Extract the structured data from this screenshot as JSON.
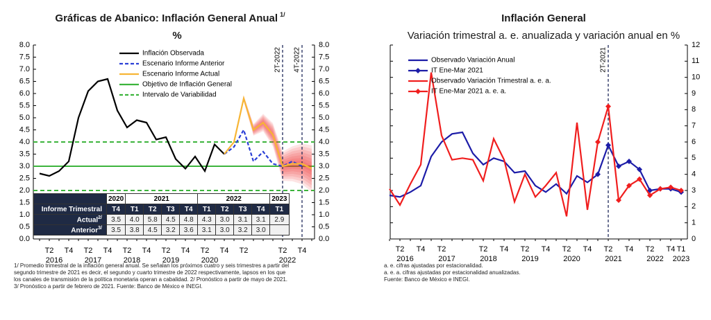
{
  "chart_data": [
    {
      "type": "line",
      "title": "Gráficas de Abanico: Inflación General Anual",
      "title_note": "1/",
      "subtitle": "%",
      "categories": [
        null,
        "T2",
        null,
        "T4",
        null,
        "T2",
        null,
        "T4",
        null,
        "T2",
        null,
        "T4",
        null,
        "T2",
        null,
        "T4",
        null,
        "T2",
        null,
        "T4",
        null,
        "T2",
        null,
        null,
        null,
        "T2",
        null,
        "T4",
        null
      ],
      "years": [
        "2016",
        "2017",
        "2018",
        "2019",
        "2020",
        null,
        "2022"
      ],
      "ylim": [
        0,
        8
      ],
      "yticks": [
        {
          "value": 0,
          "label": "0.0"
        },
        {
          "value": 0.5,
          "label": "0.5"
        },
        {
          "value": 1,
          "label": "1.0"
        },
        {
          "value": 1.5,
          "label": "1.5"
        },
        {
          "value": 2,
          "label": "2.0"
        },
        {
          "value": 2.5,
          "label": "2.5"
        },
        {
          "value": 3,
          "label": "3.0"
        },
        {
          "value": 3.5,
          "label": "3.5"
        },
        {
          "value": 4,
          "label": "4.0"
        },
        {
          "value": 4.5,
          "label": "4.5"
        },
        {
          "value": 5,
          "label": "5.0"
        },
        {
          "value": 5.5,
          "label": "5.5"
        },
        {
          "value": 6,
          "label": "6.0"
        },
        {
          "value": 6.5,
          "label": "6.5"
        },
        {
          "value": 7,
          "label": "7.0"
        },
        {
          "value": 7.5,
          "label": "7.5"
        },
        {
          "value": 8,
          "label": "8.0"
        }
      ],
      "y2ticks": [
        {
          "value": 0,
          "label": "0.0"
        },
        {
          "value": 0.5,
          "label": "0.5"
        },
        {
          "value": 1,
          "label": "1.0"
        },
        {
          "value": 1.5,
          "label": "1.5"
        },
        {
          "value": 2,
          "label": "2.0"
        },
        {
          "value": 2.5,
          "label": "2.5"
        },
        {
          "value": 3,
          "label": "3.0"
        },
        {
          "value": 3.5,
          "label": "3.5"
        },
        {
          "value": 4,
          "label": "4.0"
        },
        {
          "value": 4.5,
          "label": "4.5"
        },
        {
          "value": 5,
          "label": "5.0"
        },
        {
          "value": 5.5,
          "label": "5.5"
        },
        {
          "value": 6,
          "label": "6.0"
        },
        {
          "value": 6.5,
          "label": "6.5"
        },
        {
          "value": 7,
          "label": "7.0"
        },
        {
          "value": 7.5,
          "label": "7.5"
        },
        {
          "value": 8,
          "label": "8.0"
        }
      ],
      "series": [
        {
          "name": "Inflación Observada",
          "color": "#000000",
          "style": "solid",
          "values": [
            2.7,
            2.6,
            2.8,
            3.2,
            5.0,
            6.1,
            6.5,
            6.6,
            5.3,
            4.6,
            4.9,
            4.8,
            4.1,
            4.2,
            3.3,
            2.9,
            3.4,
            2.8,
            3.9,
            3.5,
            null,
            null,
            null,
            null,
            null,
            null,
            null,
            null,
            null
          ]
        },
        {
          "name": "Escenario Informe Anterior",
          "color": "#2a3fd6",
          "style": "dashed",
          "values": [
            null,
            null,
            null,
            null,
            null,
            null,
            null,
            null,
            null,
            null,
            null,
            null,
            null,
            null,
            null,
            null,
            null,
            null,
            null,
            3.5,
            3.8,
            4.5,
            3.2,
            3.6,
            3.1,
            3.0,
            3.2,
            3.0,
            null
          ]
        },
        {
          "name": "Escenario Informe Actual",
          "color": "#f7b535",
          "style": "solid",
          "fan": true,
          "values": [
            null,
            null,
            null,
            null,
            null,
            null,
            null,
            null,
            null,
            null,
            null,
            null,
            null,
            null,
            null,
            null,
            null,
            null,
            null,
            3.5,
            4.0,
            5.8,
            4.5,
            4.8,
            4.3,
            3.0,
            3.1,
            3.1,
            2.9
          ]
        }
      ],
      "reference_lines": [
        {
          "name": "Objetivo de Inflación General",
          "color": "#3cb43c",
          "style": "solid",
          "values": [
            3
          ]
        },
        {
          "name": "Intervalo de Variabilidad",
          "color": "#3cb43c",
          "style": "dashed",
          "values": [
            2,
            4
          ]
        }
      ],
      "vlines": [
        {
          "label": "2T-2022",
          "category": 25
        },
        {
          "label": "4T-2022",
          "category": 27
        }
      ],
      "table": {
        "header": "Informe Trimestral",
        "groups": [
          {
            "year": "2020",
            "quarters": [
              "T4"
            ]
          },
          {
            "year": "2021",
            "quarters": [
              "T1",
              "T2",
              "T3",
              "T4"
            ]
          },
          {
            "year": "2022",
            "quarters": [
              "T1",
              "T2",
              "T3",
              "T4"
            ]
          },
          {
            "year": "2023",
            "quarters": [
              "T1"
            ]
          }
        ],
        "rows": [
          {
            "label": "Actual",
            "note": "2/",
            "cells": [
              "3.5",
              "4.0",
              "5.8",
              "4.5",
              "4.8",
              "4.3",
              "3.0",
              "3.1",
              "3.1",
              "2.9"
            ]
          },
          {
            "label": "Anterior",
            "note": "3/",
            "cells": [
              "3.5",
              "3.8",
              "4.5",
              "3.2",
              "3.6",
              "3.1",
              "3.0",
              "3.2",
              "3.0",
              null
            ]
          }
        ]
      },
      "notes": [
        "1/ Promedio trimestral de la inflación general anual. Se señalan los próximos cuatro y seis trimestres a partir del",
        "segundo trimestre de 2021 es decir, el segundo y cuarto trimestre de 2022 respectivamente, lapsos en los que",
        "los canales de transmisión de la política monetaria operan a cabalidad. 2/ Pronóstico a partir de mayo de 2021.",
        "3/ Pronóstico a partir de febrero de 2021. Fuente: Banco de México e INEGI."
      ]
    },
    {
      "type": "line",
      "title": "Inflación General",
      "subtitle": "Variación trimestral a. e. anualizada y variación anual en %",
      "categories": [
        null,
        "T2",
        null,
        "T4",
        null,
        "T2",
        null,
        null,
        null,
        "T2",
        null,
        "T4",
        null,
        "T2",
        null,
        "T4",
        null,
        "T2",
        null,
        "T4",
        null,
        "T2",
        null,
        "T4",
        null,
        "T2",
        null,
        "T4",
        "T1"
      ],
      "years": [
        "2016",
        "2017",
        "2018",
        "2019",
        "2020",
        "2021",
        "2022",
        "2023"
      ],
      "ylim": [
        0,
        12
      ],
      "y_axis_side": "right",
      "yticks": [
        0,
        1,
        2,
        3,
        4,
        5,
        6,
        7,
        8,
        9,
        10,
        11,
        12
      ],
      "series": [
        {
          "name": "Observado Variación Anual",
          "color": "#1c1ca8",
          "style": "solid",
          "values": [
            2.7,
            2.6,
            2.9,
            3.3,
            5.1,
            6.0,
            6.5,
            6.6,
            5.3,
            4.6,
            5.0,
            4.8,
            4.1,
            4.2,
            3.3,
            2.9,
            3.4,
            2.8,
            3.9,
            3.5,
            4.0,
            null,
            null,
            null,
            null,
            null,
            null,
            null,
            null
          ]
        },
        {
          "name": "IT Ene-Mar 2021",
          "color": "#1c1ca8",
          "style": "solid",
          "marker": "diamond",
          "values": [
            null,
            null,
            null,
            null,
            null,
            null,
            null,
            null,
            null,
            null,
            null,
            null,
            null,
            null,
            null,
            null,
            null,
            null,
            null,
            null,
            4.0,
            5.8,
            4.5,
            4.8,
            4.3,
            3.0,
            3.1,
            3.1,
            2.9
          ]
        },
        {
          "name": "Observado Variación Trimestral a. e. a.",
          "color": "#f01e1e",
          "style": "solid",
          "values": [
            3.1,
            2.1,
            3.4,
            4.6,
            10.3,
            6.4,
            4.9,
            5.0,
            4.9,
            3.6,
            6.2,
            4.9,
            2.3,
            4.0,
            2.6,
            3.3,
            4.1,
            1.4,
            7.2,
            1.8,
            6.0,
            null,
            null,
            null,
            null,
            null,
            null,
            null,
            null
          ]
        },
        {
          "name": "IT Ene-Mar 2021 a. e. a.",
          "color": "#f01e1e",
          "style": "solid",
          "marker": "diamond",
          "values": [
            null,
            null,
            null,
            null,
            null,
            null,
            null,
            null,
            null,
            null,
            null,
            null,
            null,
            null,
            null,
            null,
            null,
            null,
            null,
            null,
            6.0,
            8.2,
            2.4,
            3.3,
            3.7,
            2.7,
            3.1,
            3.2,
            3.0
          ]
        }
      ],
      "vlines": [
        {
          "label": "2T-2021",
          "category": 21
        }
      ],
      "notes": [
        "a. e. cifras ajustadas por estacionalidad.",
        "a. e. a. cifras ajustadas por estacionalidad anualizadas.",
        "Fuente: Banco de México e INEGI."
      ]
    }
  ]
}
